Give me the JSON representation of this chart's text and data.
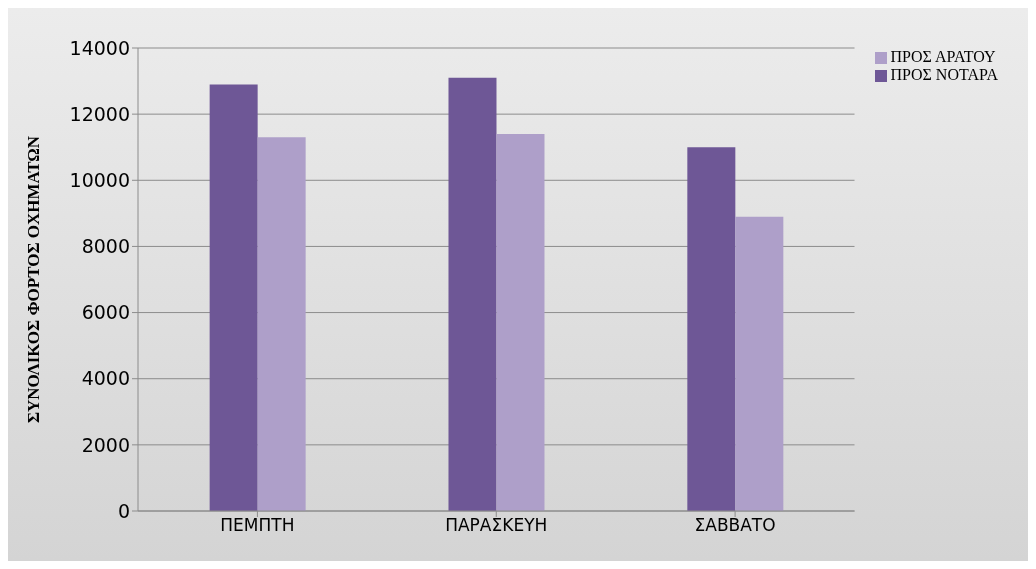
{
  "chart_data": {
    "type": "bar",
    "ylabel": "ΣΥΝΟΛΙΚΟΣ ΦΟΡΤΟΣ ΟΧΗΜΑΤΩΝ",
    "categories": [
      "ΠΕΜΠΤΗ",
      "ΠΑΡΑΣΚΕΥΗ",
      "ΣΑΒΒΑΤΟ"
    ],
    "series": [
      {
        "name": "ΠΡΟΣ ΝΟΤΑΡΑ",
        "color": "#6e5796",
        "values": [
          12900,
          13100,
          11000
        ]
      },
      {
        "name": "ΠΡΟΣ ΑΡΑΤΟΥ",
        "color": "#ae9fc9",
        "values": [
          11300,
          11400,
          8900
        ]
      }
    ],
    "ylim": [
      0,
      14000
    ],
    "yticks": [
      0,
      2000,
      4000,
      6000,
      8000,
      10000,
      12000,
      14000
    ],
    "grid": "y",
    "legend": "top right"
  }
}
